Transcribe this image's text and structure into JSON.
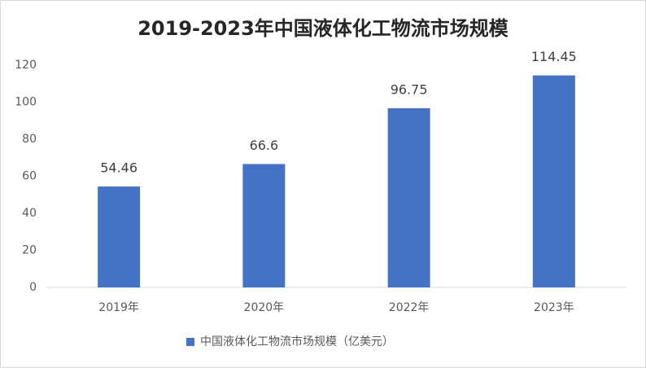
{
  "chart_data": {
    "type": "bar",
    "title": "2019-2023年中国液体化工物流市场规模",
    "categories": [
      "2019年",
      "2020年",
      "2022年",
      "2023年"
    ],
    "series": [
      {
        "name": "中国液体化工物流市场规模（亿美元）",
        "color": "#4472c4",
        "values": [
          54.46,
          66.6,
          96.75,
          114.45
        ]
      }
    ],
    "ylim": [
      0,
      120
    ],
    "yticks": [
      0,
      20,
      40,
      60,
      80,
      100,
      120
    ],
    "grid": false,
    "legend": "bottom",
    "data_labels": true
  }
}
